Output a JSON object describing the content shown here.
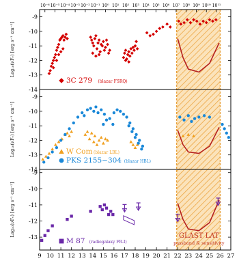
{
  "chart_data": {
    "type": "scatter",
    "x_axis_bottom": {
      "range": [
        9,
        27
      ],
      "tick_labels": [
        "9",
        "10",
        "11",
        "12",
        "13",
        "14",
        "15",
        "16",
        "17",
        "18",
        "19",
        "20",
        "21",
        "22",
        "23",
        "24",
        "25",
        "26",
        "27"
      ]
    },
    "x_axis_top": {
      "tick_labels": [
        "10⁻⁶",
        "10⁻⁵",
        "10⁻⁴",
        "10⁻³",
        "10⁻²",
        "10⁻¹",
        "10⁰",
        "10¹",
        "10²",
        "10³",
        "10⁴",
        "10⁵",
        "10⁶",
        "10⁷",
        "10⁸",
        "10⁹",
        "10¹⁰",
        "10¹¹"
      ]
    },
    "glast_band": {
      "x_range": [
        21.9,
        26.0
      ],
      "color": "#f2c27a",
      "hatch_color": "#e8a23c"
    },
    "panels": [
      {
        "id": "top",
        "ylabel": "Log₁₀(νFᵥ) [erg s⁻¹ cm⁻²]",
        "ylim": [
          -14,
          -8.5
        ],
        "y_tick_labels": [
          "-9",
          "-10",
          "-11",
          "-12",
          "-13",
          "-14"
        ],
        "legend": [
          {
            "marker": "diamond",
            "color": "#d40000",
            "label": "3C 279",
            "note": "(blazar FSRQ)"
          }
        ],
        "series": [
          {
            "name": "3C 279",
            "marker": "diamond",
            "color": "#d40000",
            "points": [
              [
                9.9,
                -12.9
              ],
              [
                10.0,
                -12.7
              ],
              [
                10.1,
                -12.4
              ],
              [
                10.2,
                -12.2
              ],
              [
                10.3,
                -12.0
              ],
              [
                10.4,
                -11.8
              ],
              [
                10.5,
                -11.6
              ],
              [
                10.6,
                -11.3
              ],
              [
                10.7,
                -11.1
              ],
              [
                10.8,
                -10.9
              ],
              [
                10.9,
                -10.6
              ],
              [
                11.0,
                -10.5
              ],
              [
                11.1,
                -10.4
              ],
              [
                11.2,
                -10.3
              ],
              [
                11.3,
                -10.6
              ],
              [
                11.4,
                -10.4
              ],
              [
                11.5,
                -10.2
              ],
              [
                11.6,
                -10.5
              ],
              [
                11.2,
                -11.2
              ],
              [
                11.0,
                -11.4
              ],
              [
                10.8,
                -11.6
              ],
              [
                10.6,
                -12.0
              ],
              [
                10.3,
                -12.5
              ],
              [
                13.8,
                -10.4
              ],
              [
                13.9,
                -10.6
              ],
              [
                14.0,
                -10.8
              ],
              [
                14.1,
                -11.0
              ],
              [
                14.2,
                -10.5
              ],
              [
                14.3,
                -10.3
              ],
              [
                14.4,
                -11.2
              ],
              [
                14.5,
                -10.8
              ],
              [
                14.6,
                -10.6
              ],
              [
                14.7,
                -11.4
              ],
              [
                14.8,
                -10.9
              ],
              [
                14.9,
                -11.0
              ],
              [
                15.0,
                -10.7
              ],
              [
                15.1,
                -11.3
              ],
              [
                15.2,
                -11.1
              ],
              [
                15.3,
                -10.6
              ],
              [
                15.4,
                -10.9
              ],
              [
                15.5,
                -11.5
              ],
              [
                15.6,
                -11.3
              ],
              [
                14.0,
                -11.5
              ],
              [
                14.3,
                -11.7
              ],
              [
                14.6,
                -11.6
              ],
              [
                16.9,
                -11.8
              ],
              [
                17.0,
                -11.5
              ],
              [
                17.1,
                -11.3
              ],
              [
                17.2,
                -11.9
              ],
              [
                17.3,
                -11.6
              ],
              [
                17.4,
                -11.4
              ],
              [
                17.5,
                -11.7
              ],
              [
                17.6,
                -11.2
              ],
              [
                17.7,
                -11.5
              ],
              [
                17.8,
                -11.1
              ],
              [
                17.9,
                -11.3
              ],
              [
                18.0,
                -11.0
              ],
              [
                18.1,
                -10.7
              ],
              [
                18.2,
                -11.2
              ],
              [
                17.1,
                -12.0
              ],
              [
                17.4,
                -12.1
              ],
              [
                19.1,
                -10.1
              ],
              [
                19.4,
                -10.3
              ],
              [
                19.7,
                -10.2
              ],
              [
                20.0,
                -10.0
              ],
              [
                20.3,
                -9.8
              ],
              [
                20.6,
                -9.7
              ],
              [
                21.0,
                -9.5
              ],
              [
                21.3,
                -9.7
              ],
              [
                22.1,
                -9.3
              ],
              [
                22.3,
                -9.5
              ],
              [
                22.6,
                -9.4
              ],
              [
                22.9,
                -9.2
              ],
              [
                23.2,
                -9.4
              ],
              [
                23.5,
                -9.2
              ],
              [
                23.8,
                -9.3
              ],
              [
                24.1,
                -9.5
              ],
              [
                24.4,
                -9.3
              ],
              [
                24.7,
                -9.4
              ],
              [
                25.0,
                -9.2
              ],
              [
                25.3,
                -9.3
              ],
              [
                25.6,
                -9.2
              ]
            ]
          },
          {
            "name": "",
            "line": true,
            "color": "#b52020",
            "points": [
              [
                22.0,
                -10.5
              ],
              [
                22.5,
                -11.8
              ],
              [
                23.0,
                -12.6
              ],
              [
                24.0,
                -12.8
              ],
              [
                25.0,
                -12.2
              ],
              [
                25.9,
                -10.8
              ]
            ]
          }
        ]
      },
      {
        "id": "middle",
        "ylabel": "Log₁₀(νFᵥ) [erg s⁻¹ cm⁻²]",
        "ylim": [
          -14,
          -8.5
        ],
        "y_tick_labels": [
          "-9",
          "-10",
          "-11",
          "-12",
          "-13",
          "-14"
        ],
        "legend": [
          {
            "marker": "triangle",
            "color": "#f0a020",
            "label": "W Com",
            "note": "(blazar LBL)"
          },
          {
            "marker": "circle",
            "color": "#1a88d8",
            "label": "PKS 2155−304",
            "note": "(blazar HBL)"
          }
        ],
        "series": [
          {
            "name": "W Com",
            "marker": "triangle",
            "color": "#f0a020",
            "points": [
              [
                9.3,
                -13.3
              ],
              [
                9.6,
                -13.1
              ],
              [
                9.9,
                -12.9
              ],
              [
                10.2,
                -12.6
              ],
              [
                10.5,
                -12.3
              ],
              [
                10.8,
                -12.1
              ],
              [
                11.1,
                -11.9
              ],
              [
                11.4,
                -11.6
              ],
              [
                11.6,
                -11.5
              ],
              [
                11.8,
                -11.7
              ],
              [
                12.0,
                -11.4
              ],
              [
                13.3,
                -11.6
              ],
              [
                13.5,
                -11.4
              ],
              [
                13.7,
                -11.9
              ],
              [
                13.9,
                -11.5
              ],
              [
                14.1,
                -12.1
              ],
              [
                14.2,
                -11.7
              ],
              [
                14.4,
                -12.3
              ],
              [
                14.6,
                -12.0
              ],
              [
                14.8,
                -11.8
              ],
              [
                15.0,
                -12.2
              ],
              [
                15.2,
                -11.9
              ],
              [
                15.4,
                -12.0
              ],
              [
                17.6,
                -12.1
              ],
              [
                17.8,
                -12.3
              ],
              [
                18.0,
                -12.5
              ],
              [
                18.2,
                -12.3
              ],
              [
                22.5,
                -11.7
              ],
              [
                23.0,
                -11.6
              ],
              [
                23.5,
                -11.7
              ]
            ]
          },
          {
            "name": "PKS 2155−304",
            "marker": "circle",
            "color": "#1a88d8",
            "points": [
              [
                9.4,
                -13.5
              ],
              [
                9.8,
                -13.2
              ],
              [
                10.2,
                -12.8
              ],
              [
                10.6,
                -12.5
              ],
              [
                11.0,
                -12.0
              ],
              [
                11.4,
                -11.6
              ],
              [
                11.8,
                -11.2
              ],
              [
                12.2,
                -10.8
              ],
              [
                12.6,
                -10.4
              ],
              [
                13.0,
                -10.1
              ],
              [
                13.2,
                -10.3
              ],
              [
                13.5,
                -9.9
              ],
              [
                13.8,
                -9.8
              ],
              [
                14.1,
                -10.0
              ],
              [
                14.3,
                -9.7
              ],
              [
                14.5,
                -10.1
              ],
              [
                14.8,
                -9.9
              ],
              [
                15.1,
                -10.2
              ],
              [
                15.3,
                -10.6
              ],
              [
                15.0,
                -10.9
              ],
              [
                15.6,
                -10.5
              ],
              [
                15.9,
                -10.9
              ],
              [
                16.0,
                -10.1
              ],
              [
                16.3,
                -9.9
              ],
              [
                16.6,
                -10.0
              ],
              [
                16.9,
                -10.2
              ],
              [
                17.2,
                -10.4
              ],
              [
                17.5,
                -10.8
              ],
              [
                17.8,
                -11.2
              ],
              [
                18.1,
                -11.6
              ],
              [
                18.4,
                -12.0
              ],
              [
                18.7,
                -12.4
              ],
              [
                17.4,
                -11.0
              ],
              [
                17.7,
                -11.4
              ],
              [
                18.0,
                -11.8
              ],
              [
                18.3,
                -12.2
              ],
              [
                18.6,
                -12.6
              ],
              [
                22.2,
                -10.4
              ],
              [
                22.6,
                -10.6
              ],
              [
                23.0,
                -10.3
              ],
              [
                23.3,
                -10.7
              ],
              [
                23.6,
                -10.5
              ],
              [
                24.0,
                -10.4
              ],
              [
                24.5,
                -10.3
              ],
              [
                25.0,
                -10.4
              ],
              [
                26.2,
                -10.9
              ],
              [
                26.4,
                -11.2
              ],
              [
                26.6,
                -11.5
              ],
              [
                26.8,
                -11.8
              ]
            ]
          },
          {
            "name": "",
            "line": true,
            "color": "#b52020",
            "points": [
              [
                22.0,
                -11.3
              ],
              [
                22.5,
                -12.3
              ],
              [
                23.0,
                -12.8
              ],
              [
                24.0,
                -12.9
              ],
              [
                25.0,
                -12.4
              ],
              [
                25.9,
                -11.1
              ]
            ]
          }
        ]
      },
      {
        "id": "bottom",
        "ylabel": "Log₁₀(νFᵥ) [erg s⁻¹ cm⁻²]",
        "ylim": [
          -13.8,
          -8.8
        ],
        "y_tick_labels": [
          "-9",
          "-10",
          "-11",
          "-12",
          "-13"
        ],
        "legend": [
          {
            "marker": "square",
            "color": "#6a28a8",
            "label": "M 87",
            "note": "(radiogalaxy FR-I)"
          }
        ],
        "series": [
          {
            "name": "M 87",
            "marker": "square",
            "color": "#6a28a8",
            "points": [
              [
                9.2,
                -13.2
              ],
              [
                9.5,
                -12.9
              ],
              [
                9.8,
                -12.6
              ],
              [
                10.2,
                -12.3
              ],
              [
                11.6,
                -11.9
              ],
              [
                12.0,
                -11.7
              ],
              [
                13.8,
                -11.4
              ],
              [
                14.7,
                -11.1
              ],
              [
                14.9,
                -11.3
              ],
              [
                15.1,
                -11.0
              ],
              [
                15.3,
                -11.2
              ],
              [
                15.5,
                -11.6
              ],
              [
                15.7,
                -11.4
              ],
              [
                15.9,
                -11.6
              ]
            ]
          },
          {
            "name": "",
            "line": true,
            "color": "#b52020",
            "points": [
              [
                22.0,
                -10.9
              ],
              [
                22.5,
                -11.9
              ],
              [
                23.0,
                -12.5
              ],
              [
                24.0,
                -12.6
              ],
              [
                25.0,
                -12.1
              ],
              [
                25.9,
                -10.7
              ]
            ]
          }
        ],
        "upper_limits": [
          {
            "x": 17.0,
            "y": -11.4,
            "color": "#6a28a8"
          },
          {
            "x": 18.3,
            "y": -11.3,
            "color": "#6a28a8"
          },
          {
            "x": 22.0,
            "y": -12.0,
            "color": "#6a28a8"
          },
          {
            "x": 25.8,
            "y": -11.0,
            "color": "#6a28a8"
          }
        ],
        "bowtie": {
          "x0": 16.9,
          "x1": 17.9,
          "y0": -11.8,
          "y1": -12.1,
          "color": "#6a28a8"
        },
        "annotation": {
          "lines": [
            "GLAST LAT",
            "passband & sensitivity"
          ],
          "color": "#c03020"
        }
      }
    ]
  }
}
